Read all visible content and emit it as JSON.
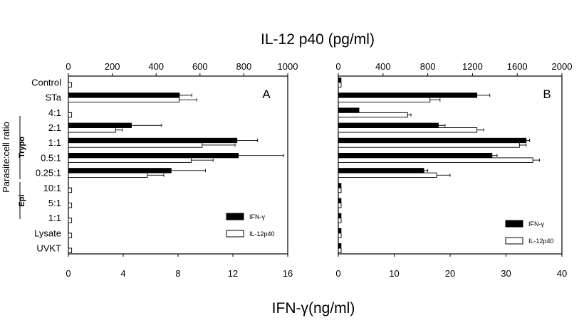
{
  "figure": {
    "top_axis_title": "IL-12 p40 (pg/ml)",
    "bottom_axis_title": "IFN-γ(ng/ml)",
    "y_axis_title": "Parasite:cell ratio",
    "group_labels": [
      "Trypo",
      "Epi"
    ],
    "colors": {
      "ifn_fill": "#000000",
      "il12_fill": "#ffffff",
      "stroke": "#000000"
    }
  },
  "chart_data": [
    {
      "type": "bar",
      "orientation": "horizontal",
      "panel_label": "A",
      "categories": [
        "Control",
        "STa",
        "4:1",
        "2:1",
        "1:1",
        "0.5:1",
        "0.25:1",
        "10:1",
        "5:1",
        "1:1",
        "Lysate",
        "UVKT"
      ],
      "category_groups": [
        {
          "name": "Trypo",
          "categories": [
            "4:1",
            "2:1",
            "1:1",
            "0.5:1",
            "0.25:1"
          ]
        },
        {
          "name": "Epi",
          "categories": [
            "10:1",
            "5:1",
            "1:1"
          ]
        }
      ],
      "series": [
        {
          "name": "IFN-γ",
          "axis": "bottom",
          "values": [
            0,
            8.1,
            0,
            4.6,
            12.3,
            12.4,
            7.5,
            0,
            0,
            0,
            0,
            0
          ],
          "errors": [
            0,
            0.9,
            0,
            2.2,
            1.5,
            3.3,
            2.5,
            0,
            0,
            0,
            0,
            0
          ]
        },
        {
          "name": "IL-12p40",
          "axis": "top",
          "values": [
            15,
            505,
            15,
            215,
            610,
            560,
            360,
            15,
            15,
            15,
            15,
            15
          ],
          "errors": [
            0,
            80,
            0,
            30,
            150,
            100,
            75,
            0,
            0,
            0,
            0,
            0
          ]
        }
      ],
      "x_top": {
        "label": "IL-12 p40 (pg/ml)",
        "ticks": [
          "0",
          "200",
          "400",
          "600",
          "800",
          "1000"
        ],
        "range": [
          0,
          1000
        ]
      },
      "x_bottom": {
        "label": "IFN-γ(ng/ml)",
        "ticks": [
          "0",
          "4",
          "8",
          "12",
          "16"
        ],
        "range": [
          0,
          16
        ]
      },
      "legend": {
        "entries": [
          "IFN-γ",
          "IL-12p40"
        ],
        "position": "bottom-right"
      },
      "grid": false
    },
    {
      "type": "bar",
      "orientation": "horizontal",
      "panel_label": "B",
      "categories": [
        "Control",
        "STa",
        "4:1",
        "2:1",
        "1:1",
        "0.5:1",
        "0.25:1",
        "10:1",
        "5:1",
        "1:1",
        "Lysate",
        "UVKT"
      ],
      "series": [
        {
          "name": "IFN-γ",
          "axis": "bottom",
          "values": [
            0.5,
            24.8,
            3.7,
            17.9,
            33.6,
            27.5,
            15.3,
            0.5,
            0.5,
            0.5,
            0.5,
            0.5
          ],
          "errors": [
            0,
            2.3,
            0,
            1.2,
            0.6,
            0.9,
            0.7,
            0,
            0,
            0,
            0,
            0
          ]
        },
        {
          "name": "IL-12p40",
          "axis": "top",
          "values": [
            10,
            820,
            620,
            1240,
            1620,
            1740,
            880,
            10,
            10,
            10,
            10,
            10
          ],
          "errors": [
            0,
            90,
            30,
            60,
            60,
            60,
            120,
            0,
            0,
            0,
            0,
            0
          ]
        }
      ],
      "x_top": {
        "label": "IL-12 p40 (pg/ml)",
        "ticks": [
          "0",
          "400",
          "800",
          "1200",
          "1600",
          "2000"
        ],
        "range": [
          0,
          2000
        ]
      },
      "x_bottom": {
        "label": "IFN-γ(ng/ml)",
        "ticks": [
          "0",
          "10",
          "20",
          "30",
          "40"
        ],
        "range": [
          0,
          40
        ]
      },
      "legend": {
        "entries": [
          "IFN-γ",
          "IL-12p40"
        ],
        "position": "bottom-right"
      },
      "grid": false
    }
  ]
}
